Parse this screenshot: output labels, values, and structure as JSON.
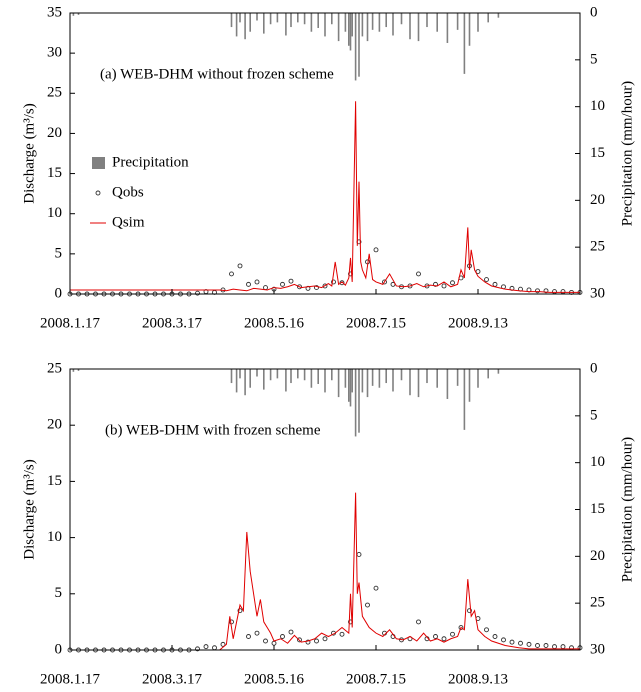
{
  "chart_data": [
    {
      "type": "line",
      "annotation": "(a) WEB-DHM without frozen scheme",
      "ylabel": "Discharge (m³/s)",
      "y2label": "Precipitation (mm/hour)",
      "xlim": [
        0,
        300
      ],
      "xticks": [
        {
          "value": 0,
          "label": "2008.1.17"
        },
        {
          "value": 60,
          "label": "2008.3.17"
        },
        {
          "value": 120,
          "label": "2008.5.16"
        },
        {
          "value": 180,
          "label": "2008.7.15"
        },
        {
          "value": 240,
          "label": "2008.9.13"
        }
      ],
      "ylim": [
        0,
        35
      ],
      "yticks": [
        0,
        5,
        10,
        15,
        20,
        25,
        30,
        35
      ],
      "y2lim": [
        0,
        30
      ],
      "y2ticks": [
        0,
        5,
        10,
        15,
        20,
        25,
        30
      ],
      "y2_inverted": true,
      "legend": "center-left",
      "series": [
        {
          "name": "Precipitation",
          "type": "bar",
          "axis": "y2",
          "color": "#808080",
          "x": [
            2,
            5,
            95,
            98,
            100,
            103,
            106,
            110,
            114,
            118,
            122,
            127,
            130,
            134,
            138,
            142,
            146,
            150,
            154,
            158,
            162,
            164,
            165,
            166,
            168,
            170,
            172,
            175,
            178,
            182,
            186,
            190,
            195,
            200,
            205,
            210,
            216,
            222,
            228,
            232,
            235,
            240,
            246,
            252
          ],
          "values": [
            0.3,
            0.2,
            1.5,
            2.5,
            1.0,
            2.8,
            2.0,
            0.8,
            2.2,
            1.2,
            1.0,
            2.4,
            1.5,
            1.0,
            1.2,
            2.0,
            1.6,
            2.5,
            1.2,
            3.0,
            2.0,
            3.5,
            4.0,
            2.5,
            7.2,
            6.8,
            2.5,
            3.0,
            1.8,
            2.0,
            1.5,
            2.4,
            1.2,
            2.8,
            3.0,
            1.5,
            2.0,
            3.2,
            1.8,
            6.5,
            3.5,
            2.0,
            1.0,
            0.5
          ]
        },
        {
          "name": "Qobs",
          "type": "scatter",
          "color": "#333333",
          "x": [
            0,
            5,
            10,
            15,
            20,
            25,
            30,
            35,
            40,
            45,
            50,
            55,
            60,
            65,
            70,
            75,
            80,
            85,
            90,
            95,
            100,
            105,
            110,
            115,
            120,
            125,
            130,
            135,
            140,
            145,
            150,
            155,
            160,
            165,
            170,
            175,
            180,
            185,
            190,
            195,
            200,
            205,
            210,
            215,
            220,
            225,
            230,
            235,
            240,
            245,
            250,
            255,
            260,
            265,
            270,
            275,
            280,
            285,
            290,
            295,
            300
          ],
          "values": [
            0,
            0,
            0,
            0,
            0,
            0,
            0,
            0,
            0,
            0,
            0,
            0,
            0,
            0,
            0,
            0.1,
            0.3,
            0.2,
            0.5,
            2.5,
            3.5,
            1.2,
            1.5,
            0.8,
            0.6,
            1.2,
            1.6,
            0.9,
            0.7,
            0.8,
            1.0,
            1.5,
            1.4,
            2.5,
            6.5,
            4.0,
            5.5,
            1.5,
            1.2,
            0.9,
            1.0,
            2.5,
            1.0,
            1.2,
            1.0,
            1.4,
            2.0,
            3.5,
            2.8,
            1.8,
            1.2,
            0.9,
            0.7,
            0.6,
            0.5,
            0.4,
            0.4,
            0.3,
            0.3,
            0.2,
            0.2
          ]
        },
        {
          "name": "Qsim",
          "type": "line",
          "color": "#e00000",
          "x": [
            0,
            88,
            92,
            96,
            100,
            104,
            108,
            112,
            116,
            120,
            124,
            128,
            132,
            136,
            140,
            144,
            148,
            152,
            154,
            156,
            158,
            160,
            162,
            164,
            165,
            166,
            168,
            169,
            170,
            171,
            172,
            174,
            176,
            178,
            180,
            184,
            188,
            192,
            196,
            200,
            204,
            208,
            212,
            216,
            220,
            224,
            228,
            230,
            232,
            234,
            235,
            236,
            238,
            240,
            244,
            248,
            252,
            256,
            260,
            264,
            270,
            276,
            282,
            288,
            294,
            300
          ],
          "values": [
            0.5,
            0.5,
            0.4,
            0.6,
            0.5,
            0.4,
            0.7,
            0.6,
            0.5,
            0.8,
            0.7,
            0.9,
            1.2,
            0.8,
            0.9,
            1.0,
            0.8,
            1.3,
            1.0,
            4.0,
            1.2,
            1.5,
            1.1,
            2.0,
            4.5,
            1.5,
            24,
            6,
            14,
            4,
            3,
            2,
            5,
            1.8,
            1.5,
            1.2,
            2.5,
            1.0,
            0.9,
            1.0,
            1.3,
            0.9,
            1.1,
            1.0,
            1.5,
            0.9,
            1.2,
            3.0,
            2.0,
            8.3,
            3.0,
            5.5,
            3.0,
            2.2,
            1.5,
            1.0,
            0.8,
            0.6,
            0.5,
            0.4,
            0.3,
            0.3,
            0.2,
            0.2,
            0.2,
            0.2
          ]
        }
      ]
    },
    {
      "type": "line",
      "annotation": "(b) WEB-DHM with frozen scheme",
      "ylabel": "Discharge (m³/s)",
      "y2label": "Precipitation (mm/hour)",
      "xlim": [
        0,
        300
      ],
      "xticks": [
        {
          "value": 0,
          "label": "2008.1.17"
        },
        {
          "value": 60,
          "label": "2008.3.17"
        },
        {
          "value": 120,
          "label": "2008.5.16"
        },
        {
          "value": 180,
          "label": "2008.7.15"
        },
        {
          "value": 240,
          "label": "2008.9.13"
        }
      ],
      "ylim": [
        0,
        25
      ],
      "yticks": [
        0,
        5,
        10,
        15,
        20,
        25
      ],
      "y2lim": [
        0,
        30
      ],
      "y2ticks": [
        0,
        5,
        10,
        15,
        20,
        25,
        30
      ],
      "y2_inverted": true,
      "series": [
        {
          "type": "bar",
          "axis": "y2",
          "color": "#808080",
          "x": [
            2,
            5,
            95,
            98,
            100,
            103,
            106,
            110,
            114,
            118,
            122,
            127,
            130,
            134,
            138,
            142,
            146,
            150,
            154,
            158,
            162,
            164,
            165,
            166,
            168,
            170,
            172,
            175,
            178,
            182,
            186,
            190,
            195,
            200,
            205,
            210,
            216,
            222,
            228,
            232,
            235,
            240,
            246,
            252
          ],
          "values": [
            0.3,
            0.2,
            1.5,
            2.5,
            1.0,
            2.8,
            2.0,
            0.8,
            2.2,
            1.2,
            1.0,
            2.4,
            1.5,
            1.0,
            1.2,
            2.0,
            1.6,
            2.5,
            1.2,
            3.0,
            2.0,
            3.5,
            4.0,
            2.5,
            7.2,
            6.8,
            2.5,
            3.0,
            1.8,
            2.0,
            1.5,
            2.4,
            1.2,
            2.8,
            3.0,
            1.5,
            2.0,
            3.2,
            1.8,
            6.5,
            3.5,
            2.0,
            1.0,
            0.5
          ]
        },
        {
          "type": "scatter",
          "color": "#333333",
          "x": [
            0,
            5,
            10,
            15,
            20,
            25,
            30,
            35,
            40,
            45,
            50,
            55,
            60,
            65,
            70,
            75,
            80,
            85,
            90,
            95,
            100,
            105,
            110,
            115,
            120,
            125,
            130,
            135,
            140,
            145,
            150,
            155,
            160,
            165,
            170,
            175,
            180,
            185,
            190,
            195,
            200,
            205,
            210,
            215,
            220,
            225,
            230,
            235,
            240,
            245,
            250,
            255,
            260,
            265,
            270,
            275,
            280,
            285,
            290,
            295,
            300
          ],
          "values": [
            0,
            0,
            0,
            0,
            0,
            0,
            0,
            0,
            0,
            0,
            0,
            0,
            0,
            0,
            0,
            0.1,
            0.3,
            0.2,
            0.5,
            2.5,
            3.5,
            1.2,
            1.5,
            0.8,
            0.6,
            1.2,
            1.6,
            0.9,
            0.7,
            0.8,
            1.0,
            1.5,
            1.4,
            2.5,
            8.5,
            4.0,
            5.5,
            1.5,
            1.2,
            0.9,
            1.0,
            2.5,
            1.0,
            1.2,
            1.0,
            1.4,
            2.0,
            3.5,
            2.8,
            1.8,
            1.2,
            0.9,
            0.7,
            0.6,
            0.5,
            0.4,
            0.4,
            0.3,
            0.3,
            0.2,
            0.2
          ]
        },
        {
          "type": "line",
          "color": "#e00000",
          "x": [
            0,
            88,
            92,
            94,
            96,
            98,
            100,
            102,
            104,
            106,
            108,
            110,
            112,
            114,
            116,
            118,
            120,
            124,
            128,
            132,
            136,
            140,
            144,
            148,
            152,
            156,
            160,
            164,
            165,
            166,
            168,
            169,
            170,
            172,
            176,
            180,
            184,
            188,
            192,
            196,
            200,
            204,
            208,
            212,
            216,
            220,
            224,
            228,
            230,
            232,
            234,
            236,
            238,
            240,
            244,
            248,
            252,
            256,
            260,
            264,
            270,
            276,
            282,
            288,
            294,
            300
          ],
          "values": [
            0,
            0,
            0.5,
            3.0,
            1.0,
            2.5,
            4.0,
            3.5,
            10.5,
            7.0,
            5.0,
            3.0,
            4.5,
            2.5,
            2.0,
            1.5,
            0.8,
            1.0,
            0.6,
            1.3,
            0.7,
            0.8,
            1.0,
            1.5,
            1.2,
            1.5,
            2.0,
            1.5,
            5.0,
            2.0,
            14,
            5,
            6,
            3,
            2,
            1.5,
            1.2,
            1.8,
            1.0,
            0.9,
            1.2,
            0.8,
            1.5,
            0.8,
            1.0,
            0.7,
            1.0,
            1.2,
            2.0,
            1.8,
            6.3,
            3.0,
            3.5,
            1.8,
            1.2,
            0.8,
            0.6,
            0.4,
            0.3,
            0.2,
            0.1,
            0.1,
            0.1,
            0.1,
            0.1,
            0.1
          ]
        }
      ]
    }
  ]
}
